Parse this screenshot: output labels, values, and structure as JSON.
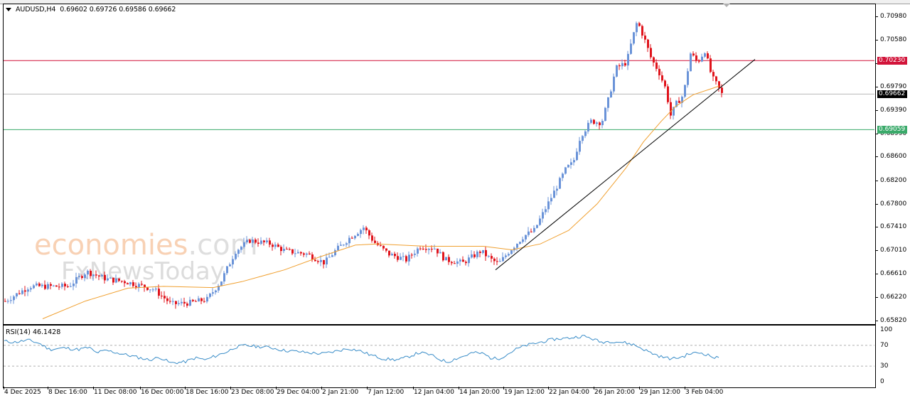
{
  "header": {
    "symbol": "AUDUSD,H4",
    "ohlc": "0.69602 0.69726 0.69586 0.69662",
    "text": "AUDUSD,H4  0.69602 0.69726 0.69586 0.69662"
  },
  "rsi": {
    "label": "RSI(14) 46.1428",
    "levels": [
      "100",
      "70",
      "30",
      "0"
    ]
  },
  "watermark": {
    "line1": "economies",
    "line1_suffix": ".com",
    "line2": "FxNewsToday"
  },
  "colors": {
    "bull": "#6a93d8",
    "bear": "#e0141c",
    "ma": "#f0a030",
    "resistance": "#d2143a",
    "support": "#3aaa6a",
    "current": "#000000",
    "rsi_line": "#3a8dc8",
    "trendline": "#000000"
  },
  "price_axis": {
    "ticks": [
      "0.70980",
      "0.70580",
      "0.70180",
      "0.69790",
      "0.69390",
      "0.68990",
      "0.68600",
      "0.68200",
      "0.67800",
      "0.67410",
      "0.67010",
      "0.66610",
      "0.66220",
      "0.65820"
    ],
    "resistance_badge": "0.70230",
    "current_badge": "0.69662",
    "support_badge": "0.69059"
  },
  "time_axis": {
    "labels": [
      "4 Dec 2025",
      "8 Dec 16:00",
      "11 Dec 08:00",
      "16 Dec 00:00",
      "18 Dec 16:00",
      "23 Dec 08:00",
      "29 Dec 04:00",
      "2 Jan 21:00",
      "7 Jan 12:00",
      "12 Jan 04:00",
      "14 Jan 20:00",
      "19 Jan 12:00",
      "22 Jan 04:00",
      "26 Jan 20:00",
      "29 Jan 12:00",
      "3 Feb 04:00"
    ]
  },
  "chart_data": {
    "type": "candlestick",
    "title": "AUDUSD,H4",
    "ohlc_last": {
      "open": 0.69602,
      "high": 0.69726,
      "low": 0.69586,
      "close": 0.69662
    },
    "x_labels": [
      "4 Dec 2025",
      "8 Dec 16:00",
      "11 Dec 08:00",
      "16 Dec 00:00",
      "18 Dec 16:00",
      "23 Dec 08:00",
      "29 Dec 04:00",
      "2 Jan 21:00",
      "7 Jan 12:00",
      "12 Jan 04:00",
      "14 Jan 20:00",
      "19 Jan 12:00",
      "22 Jan 04:00",
      "26 Jan 20:00",
      "29 Jan 12:00",
      "3 Feb 04:00"
    ],
    "y_ticks": [
      0.7098,
      0.7058,
      0.7018,
      0.6979,
      0.6939,
      0.6899,
      0.686,
      0.682,
      0.678,
      0.6741,
      0.6701,
      0.6661,
      0.6622,
      0.6582
    ],
    "ylim": [
      0.6578,
      0.7112
    ],
    "horizontal_lines": [
      {
        "name": "resistance",
        "value": 0.7023,
        "color": "#d2143a"
      },
      {
        "name": "current price",
        "value": 0.69662,
        "color": "#b0b0b0"
      },
      {
        "name": "support",
        "value": 0.69059,
        "color": "#3aaa6a"
      }
    ],
    "trendline": {
      "from": {
        "x_label": "14 Jan 20:00",
        "price": 0.6668
      },
      "to": {
        "x_label": "after 3 Feb 04:00",
        "price": 0.702
      }
    },
    "price_path_approx": [
      {
        "x": "4 Dec 2025",
        "price": 0.6615
      },
      {
        "x": "8 Dec 16:00",
        "price": 0.664
      },
      {
        "x": "11 Dec 08:00",
        "price": 0.666
      },
      {
        "x": "16 Dec 00:00",
        "price": 0.6635
      },
      {
        "x": "18 Dec 16:00",
        "price": 0.661
      },
      {
        "x": "23 Dec 08:00",
        "price": 0.671
      },
      {
        "x": "29 Dec 04:00",
        "price": 0.67
      },
      {
        "x": "2 Jan 21:00",
        "price": 0.669
      },
      {
        "x": "7 Jan 12:00",
        "price": 0.6725
      },
      {
        "x": "12 Jan 04:00",
        "price": 0.671
      },
      {
        "x": "14 Jan 20:00",
        "price": 0.6695
      },
      {
        "x": "19 Jan 12:00",
        "price": 0.6725
      },
      {
        "x": "22 Jan 04:00",
        "price": 0.683
      },
      {
        "x": "26 Jan 20:00",
        "price": 0.692
      },
      {
        "x": "27 Jan peak",
        "price": 0.7095
      },
      {
        "x": "29 Jan 12:00",
        "price": 0.693
      },
      {
        "x": "3 Feb 04:00",
        "price": 0.704
      },
      {
        "x": "last",
        "price": 0.69662
      }
    ],
    "indicators": [
      {
        "name": "Moving Average",
        "color": "#f0a030",
        "approx_path": [
          0.6585,
          0.6635,
          0.6635,
          0.668,
          0.6712,
          0.6708,
          0.67,
          0.678,
          0.69,
          0.6975
        ]
      },
      {
        "name": "RSI(14)",
        "value": 46.1428,
        "levels": [
          30,
          70
        ],
        "range": [
          0,
          100
        ]
      }
    ],
    "legend": "none",
    "grid": false
  }
}
